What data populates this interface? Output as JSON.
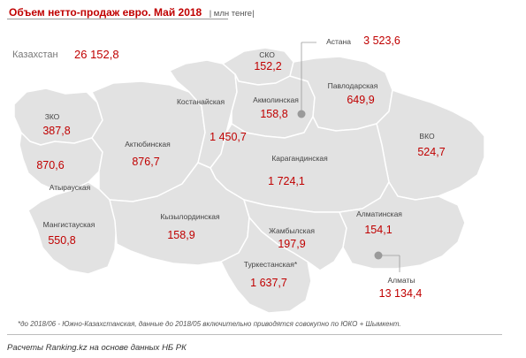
{
  "header": {
    "title": "Объем нетто-продаж евро. Май 2018",
    "unit": "| млн тенге|"
  },
  "total": {
    "name": "Казахстан",
    "value": "26 152,8"
  },
  "regions": {
    "astana": {
      "name": "Астана",
      "value": "3 523,6"
    },
    "sko": {
      "name": "СКО",
      "value": "152,2"
    },
    "akmola": {
      "name": "Акмолинская",
      "value": "158,8"
    },
    "kostanay": {
      "name": "Костанайская",
      "value": "1 450,7"
    },
    "pavlodar": {
      "name": "Павлодарская",
      "value": "649,9"
    },
    "zko": {
      "name": "ЗКО",
      "value": "387,8"
    },
    "atyrau": {
      "name": "Атырауская",
      "value": "870,6"
    },
    "aktobe": {
      "name": "Актюбинская",
      "value": "876,7"
    },
    "vko": {
      "name": "ВКО",
      "value": "524,7"
    },
    "karaganda": {
      "name": "Карагандинская",
      "value": "1 724,1"
    },
    "mangistau": {
      "name": "Мангистауская",
      "value": "550,8"
    },
    "kyzylorda": {
      "name": "Кызылординская",
      "value": "158,9"
    },
    "zhambyl": {
      "name": "Жамбылская",
      "value": "197,9"
    },
    "almaty_reg": {
      "name": "Алматинская",
      "value": "154,1"
    },
    "turkestan": {
      "name": "Туркестанская*",
      "value": "1 637,7"
    },
    "almaty_city": {
      "name": "Алматы",
      "value": "13 134,4"
    }
  },
  "footnote": "*до 2018/06 - Южно-Казахстанская, данные до 2018/05 включительно приводятся совокупно по ЮКО + Шымкент.",
  "source": "Расчеты Ranking.kz на основе данных НБ РК",
  "colors": {
    "land": "#e2e2e2",
    "border": "#ffffff",
    "value": "#c00000",
    "marker": "#9a9a9a"
  }
}
